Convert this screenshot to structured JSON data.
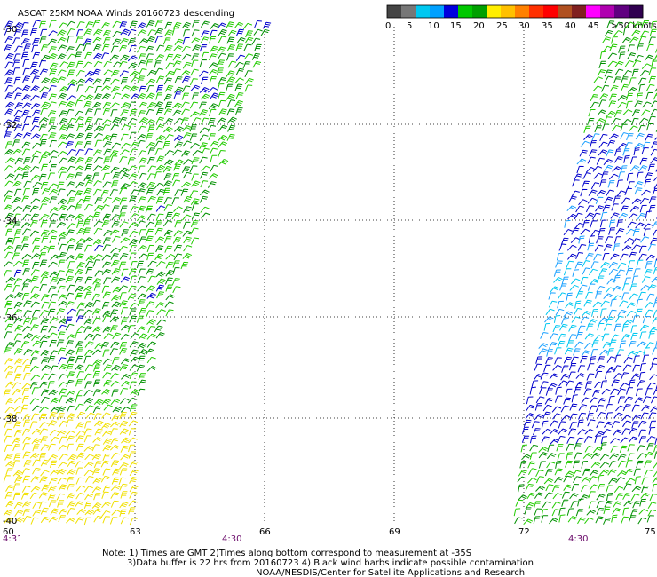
{
  "title": "ASCAT 25KM NOAA Winds 20160723 descending",
  "legend": {
    "colors": [
      "#444444",
      "#777777",
      "#00c8f0",
      "#00a0ff",
      "#0000dd",
      "#00c800",
      "#00a000",
      "#ffee00",
      "#ffc000",
      "#ff8000",
      "#ff3000",
      "#ff0000",
      "#b05020",
      "#802020",
      "#ff00ff",
      "#b000b0",
      "#600080",
      "#300050"
    ],
    "labels": [
      "0",
      "5",
      "10",
      "15",
      "20",
      "25",
      "30",
      "35",
      "40",
      "45",
      ">50 knots"
    ]
  },
  "axes": {
    "lat_labels": [
      "-30",
      "-32",
      "-34",
      "-36",
      "-38",
      "-40"
    ],
    "lon_labels": [
      "60",
      "63",
      "66",
      "69",
      "72",
      "75"
    ]
  },
  "times": [
    "4:31",
    "4:30",
    "4:30"
  ],
  "notes": [
    "Note: 1) Times are GMT 2)Times along bottom correspond to measurement at -35S",
    "3)Data buffer is 22 hrs from 20160723 4) Black wind barbs indicate possible contamination",
    "NOAA/NESDIS/Center for Satellite Applications and Research"
  ],
  "swaths": [
    {
      "name": "western swath",
      "colors": [
        "blue",
        "green",
        "yellow"
      ]
    },
    {
      "name": "eastern swath",
      "colors": [
        "green",
        "blue",
        "cyan"
      ]
    }
  ]
}
